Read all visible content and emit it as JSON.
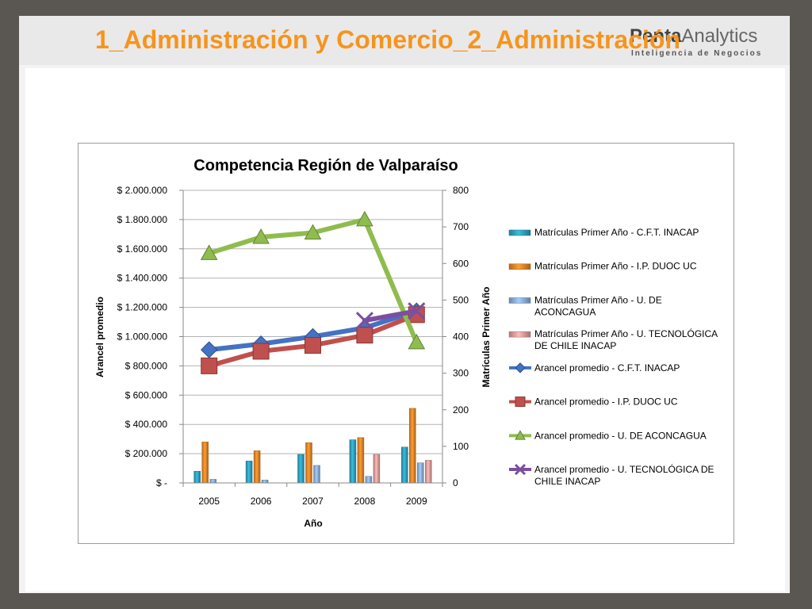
{
  "slide": {
    "title": "1_Administración y Comercio_2_Administración",
    "logo_main_bold": "Penta",
    "logo_main": "Analytics",
    "logo_sub": "Inteligencia de Negocios"
  },
  "chart_data": {
    "type": "bar+line",
    "title": "Competencia Región de Valparaíso",
    "xlabel": "Año",
    "ylabel_left": "Arancel promedio",
    "ylabel_right": "Matrículas Primer Año",
    "categories": [
      "2005",
      "2006",
      "2007",
      "2008",
      "2009"
    ],
    "ylim_left": [
      0,
      2000000
    ],
    "ylim_right": [
      0,
      800
    ],
    "left_ticks": [
      "$ -",
      "$ 200.000",
      "$ 400.000",
      "$ 600.000",
      "$ 800.000",
      "$ 1.000.000",
      "$ 1.200.000",
      "$ 1.400.000",
      "$ 1.600.000",
      "$ 1.800.000",
      "$ 2.000.000"
    ],
    "right_ticks": [
      "0",
      "100",
      "200",
      "300",
      "400",
      "500",
      "600",
      "700",
      "800"
    ],
    "grid": true,
    "legend_position": "right",
    "bar_series": [
      {
        "name": "Matrículas Primer Año - C.F.T. INACAP",
        "color": "#31a5c4",
        "values": [
          32,
          60,
          78,
          118,
          98
        ]
      },
      {
        "name": "Matrículas Primer Año - I.P. DUOC UC",
        "color": "#f0892a",
        "values": [
          112,
          88,
          110,
          124,
          204
        ]
      },
      {
        "name": "Matrículas Primer Año - U. DE ACONCAGUA",
        "color": "#8fb2dd",
        "values": [
          10,
          8,
          48,
          18,
          55
        ]
      },
      {
        "name": "Matrículas Primer Año - U. TECNOLÓGICA DE CHILE INACAP",
        "color": "#e9a3a1",
        "values": [
          null,
          null,
          null,
          78,
          62
        ]
      }
    ],
    "line_series": [
      {
        "name": "Arancel promedio  - C.F.T. INACAP",
        "color": "#4472c4",
        "marker": "diamond",
        "values": [
          910000,
          950000,
          1000000,
          1060000,
          1175000
        ]
      },
      {
        "name": "Arancel promedio  - I.P. DUOC UC",
        "color": "#c0504d",
        "marker": "square",
        "values": [
          800000,
          900000,
          940000,
          1010000,
          1150000
        ]
      },
      {
        "name": "Arancel promedio  - U. DE ACONCAGUA",
        "color": "#8fbc4f",
        "marker": "triangle",
        "values": [
          1570000,
          1680000,
          1710000,
          1800000,
          960000
        ]
      },
      {
        "name": "Arancel promedio  - U. TECNOLÓGICA DE CHILE INACAP",
        "color": "#7b4fa0",
        "marker": "x",
        "values": [
          null,
          null,
          null,
          1110000,
          1175000
        ]
      }
    ]
  }
}
